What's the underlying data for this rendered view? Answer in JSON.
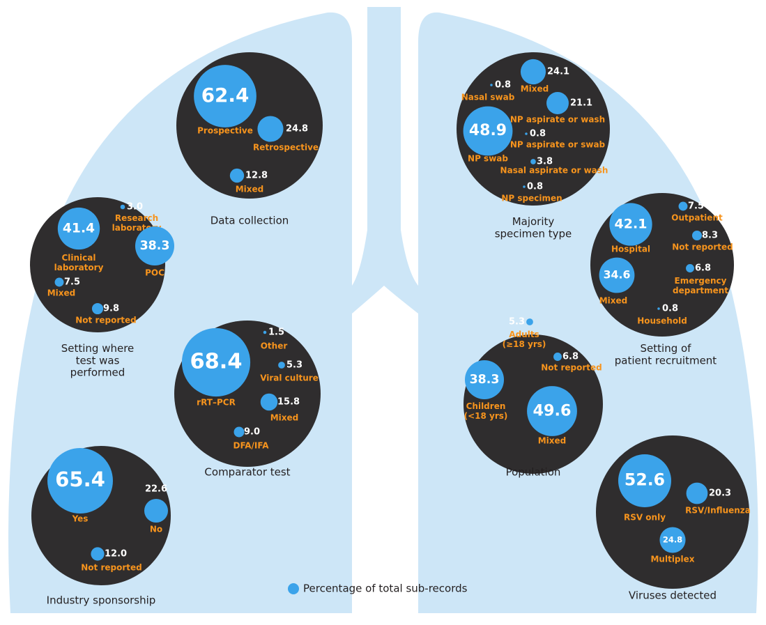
{
  "chart_data": [
    {
      "type": "bubble",
      "title": "Data collection",
      "color": "#3ba3ea",
      "categories": [
        "Prospective",
        "Retrospective",
        "Mixed"
      ],
      "values": [
        62.4,
        24.8,
        12.8
      ],
      "value_labels": [
        "62.4",
        "24.8",
        "12.8"
      ]
    },
    {
      "type": "bubble",
      "title": "Setting where test was performed",
      "color": "#3ba3ea",
      "categories": [
        "Clinical laboratory",
        "Research laboratory",
        "POC",
        "Mixed",
        "Not reported"
      ],
      "values": [
        41.4,
        3.0,
        38.3,
        7.5,
        9.8
      ],
      "value_labels": [
        "41.4",
        "3.0",
        "38.3",
        "7.5",
        "9.8"
      ]
    },
    {
      "type": "bubble",
      "title": "Comparator test",
      "color": "#3ba3ea",
      "categories": [
        "rRT–PCR",
        "Other",
        "Viral culture",
        "Mixed",
        "DFA/IFA"
      ],
      "values": [
        68.4,
        1.5,
        5.3,
        15.8,
        9.0
      ],
      "value_labels": [
        "68.4",
        "1.5",
        "5.3",
        "15.8",
        "9.0"
      ]
    },
    {
      "type": "bubble",
      "title": "Industry sponsorship",
      "color": "#3ba3ea",
      "categories": [
        "Yes",
        "No",
        "Not reported"
      ],
      "values": [
        65.4,
        22.6,
        12.0
      ],
      "value_labels": [
        "65.4",
        "22.6",
        "12.0"
      ]
    },
    {
      "type": "bubble",
      "title": "Majority specimen type",
      "color": "#3ba3ea",
      "categories": [
        "Mixed",
        "Nasal swab",
        "NP aspirate or wash",
        "NP swab",
        "NP aspirate or swab",
        "Nasal aspirate or wash",
        "NP specimen"
      ],
      "values": [
        24.1,
        0.8,
        21.1,
        48.9,
        0.8,
        3.8,
        0.8
      ],
      "value_labels": [
        "24.1",
        "0.8",
        "21.1",
        "48.9",
        "0.8",
        "3.8",
        "0.8"
      ]
    },
    {
      "type": "bubble",
      "title": "Setting of patient recruitment",
      "color": "#3ba3ea",
      "categories": [
        "Hospital",
        "Outpatient",
        "Not reported",
        "Emergency department",
        "Mixed",
        "Household"
      ],
      "values": [
        42.1,
        7.5,
        8.3,
        6.8,
        34.6,
        0.8
      ],
      "value_labels": [
        "42.1",
        "7.5",
        "8.3",
        "6.8",
        "34.6",
        "0.8"
      ]
    },
    {
      "type": "bubble",
      "title": "Population",
      "color": "#3ba3ea",
      "categories": [
        "Adults (≥18 yrs)",
        "Not reported",
        "Children (<18 yrs)",
        "Mixed"
      ],
      "values": [
        5.3,
        6.8,
        38.3,
        49.6
      ],
      "value_labels": [
        "5.3",
        "6.8",
        "38.3",
        "49.6"
      ]
    },
    {
      "type": "bubble",
      "title": "Viruses detected",
      "color": "#3ba3ea",
      "categories": [
        "RSV only",
        "RSV/Influenza",
        "Multiplex"
      ],
      "values": [
        52.6,
        20.3,
        24.8
      ],
      "value_labels": [
        "52.6",
        "20.3",
        "24.8"
      ]
    }
  ],
  "legend": "Percentage of total sub-records"
}
